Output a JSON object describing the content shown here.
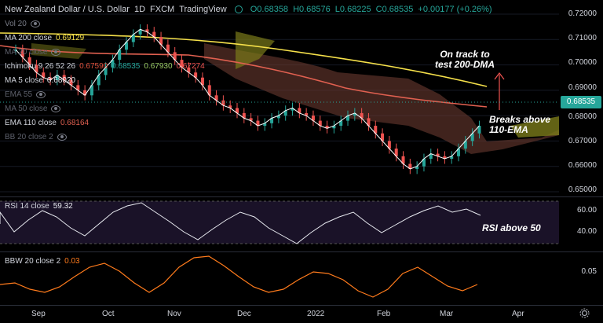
{
  "header": {
    "symbol": "New Zealand Dollar / U.S. Dollar",
    "interval": "1D",
    "exchange": "FXCM",
    "platform": "TradingView",
    "ohlc": {
      "o": "O0.68358",
      "h": "H0.68576",
      "l": "L0.68225",
      "c": "C0.68535",
      "chg": "+0.00177 (+0.26%)"
    }
  },
  "legends": {
    "vol": "Vol 20",
    "ma200_label": "MA 200 close",
    "ma200_value": "0.69129",
    "ma20_label": "MA 20 close",
    "ichimoku_label": "Ichimoku 9 26 52 26",
    "ichimoku_v1": "0.67590",
    "ichimoku_v2": "0.68535",
    "ichimoku_v3": "0.67930",
    "ichimoku_v4": "0.67274",
    "ma5_label": "MA 5 close",
    "ma5_value": "0.68020",
    "ema55_label": "EMA 55",
    "ma50_label": "MA 50 close",
    "ema110_label": "EMA 110 close",
    "ema110_value": "0.68164",
    "bb_label": "BB 20 close 2"
  },
  "rsi": {
    "label": "RSI 14 close",
    "value": "59.32"
  },
  "bbw": {
    "label": "BBW 20 close 2",
    "value": "0.03"
  },
  "annotations": {
    "top_line1": "On track to",
    "top_line2": "test 200-DMA",
    "mid_line1": "Breaks above",
    "mid_line2": "110-EMA",
    "rsi_note": "RSI above 50"
  },
  "price_axis": [
    "0.72000",
    "0.71000",
    "0.70000",
    "0.69000",
    "0.68000",
    "0.67000",
    "0.66000",
    "0.65000"
  ],
  "current_price": "0.68535",
  "rsi_axis": [
    "60.00",
    "40.00"
  ],
  "bbw_axis": [
    "0.05"
  ],
  "time_axis": [
    "Sep",
    "Oct",
    "Nov",
    "Dec",
    "2022",
    "Feb",
    "Mar",
    "Apr"
  ],
  "colors": {
    "ma200": "#f5e04a",
    "ema110": "#e06050",
    "ma5": "#ffffff",
    "cloud_bull": "#7a7a1a",
    "cloud_bear": "#6a3a30",
    "up": "#26a69a",
    "down": "#ef5350",
    "current": "#26a69a",
    "bbw": "#ff7b1c"
  },
  "icons": [
    "eye-icon",
    "gear-icon",
    "arrow-up-icon"
  ]
}
